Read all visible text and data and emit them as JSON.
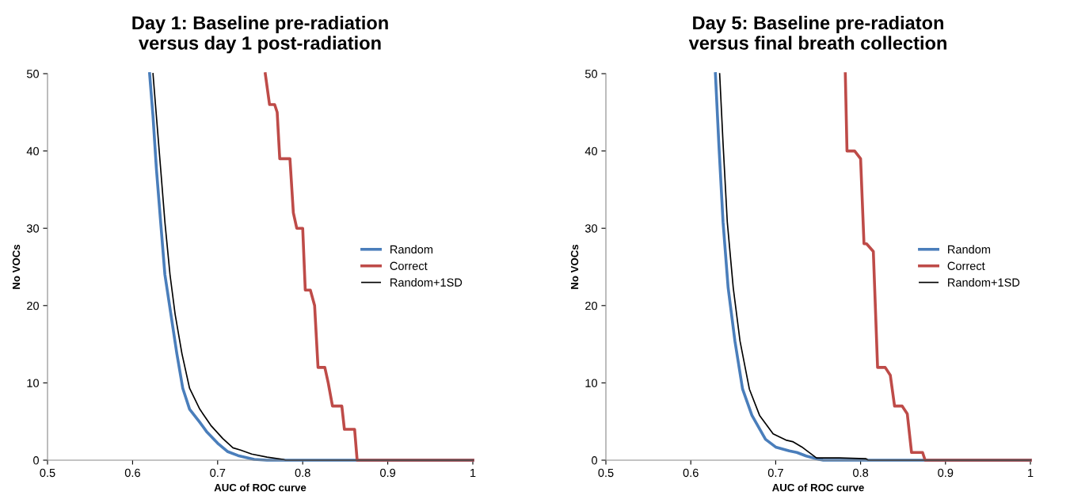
{
  "chart_data": [
    {
      "type": "line",
      "title": "Day 1: Baseline pre-radiation\nversus day 1 post-radiation",
      "xlabel": "AUC of ROC curve",
      "ylabel": "No VOCs",
      "xlim": [
        0.5,
        1
      ],
      "ylim": [
        0,
        50
      ],
      "xticks": [
        0.5,
        0.6,
        0.7,
        0.8,
        0.9,
        1
      ],
      "yticks": [
        0,
        10,
        20,
        30,
        40,
        50
      ],
      "grid": false,
      "legend": "right",
      "marker": "none",
      "series": [
        {
          "name": "Random",
          "color": "#4a7ebb",
          "x": [
            0.62,
            0.624,
            0.628,
            0.633,
            0.638,
            0.645,
            0.652,
            0.659,
            0.667,
            0.679,
            0.687,
            0.7,
            0.712,
            0.724,
            0.743,
            0.758,
            1.0
          ],
          "values": [
            50,
            44.5,
            37.7,
            30.8,
            24,
            18.9,
            13.8,
            9.3,
            6.6,
            4.9,
            3.7,
            2.2,
            1.1,
            0.6,
            0.1,
            0,
            0
          ]
        },
        {
          "name": "Correct",
          "color": "#be4b48",
          "x": [
            0.756,
            0.761,
            0.767,
            0.77,
            0.773,
            0.785,
            0.789,
            0.793,
            0.8,
            0.803,
            0.809,
            0.814,
            0.818,
            0.826,
            0.83,
            0.835,
            0.846,
            0.849,
            0.861,
            0.864,
            1.0
          ],
          "values": [
            50,
            46,
            46,
            45,
            39,
            39,
            32,
            30,
            30,
            22,
            22,
            20,
            12,
            12,
            10,
            7,
            7,
            4,
            4,
            0,
            0
          ]
        },
        {
          "name": "Random+1SD",
          "color": "#000000",
          "x": [
            0.624,
            0.628,
            0.633,
            0.638,
            0.644,
            0.65,
            0.658,
            0.667,
            0.679,
            0.692,
            0.706,
            0.718,
            0.727,
            0.74,
            0.758,
            0.777,
            0.78,
            1.0
          ],
          "values": [
            50,
            44.5,
            37.7,
            30.8,
            24,
            18.9,
            13.8,
            9.3,
            6.6,
            4.5,
            2.8,
            1.6,
            1.3,
            0.8,
            0.4,
            0.1,
            0,
            0
          ]
        }
      ]
    },
    {
      "type": "line",
      "title": "Day 5: Baseline pre-radiaton\nversus final breath collection",
      "xlabel": "AUC of ROC curve",
      "ylabel": "No VOCs",
      "xlim": [
        0.5,
        1
      ],
      "ylim": [
        0,
        50
      ],
      "xticks": [
        0.5,
        0.6,
        0.7,
        0.8,
        0.9,
        1
      ],
      "yticks": [
        0,
        10,
        20,
        30,
        40,
        50
      ],
      "grid": false,
      "legend": "right",
      "marker": "none",
      "series": [
        {
          "name": "Random",
          "color": "#4a7ebb",
          "x": [
            0.629,
            0.633,
            0.638,
            0.644,
            0.652,
            0.661,
            0.672,
            0.688,
            0.7,
            0.716,
            0.725,
            0.737,
            0.751,
            0.756,
            1.0
          ],
          "values": [
            50,
            41,
            30.8,
            22.3,
            15.4,
            9.2,
            5.8,
            2.7,
            1.7,
            1.2,
            1.0,
            0.5,
            0.1,
            0,
            0
          ]
        },
        {
          "name": "Correct",
          "color": "#be4b48",
          "x": [
            0.782,
            0.784,
            0.793,
            0.8,
            0.804,
            0.807,
            0.815,
            0.82,
            0.829,
            0.835,
            0.84,
            0.849,
            0.855,
            0.86,
            0.873,
            0.876,
            1.0
          ],
          "values": [
            50,
            40,
            40,
            39,
            28,
            28,
            27,
            12,
            12,
            11,
            7,
            7,
            6,
            1,
            1,
            0,
            0
          ]
        },
        {
          "name": "Random+1SD",
          "color": "#000000",
          "x": [
            0.634,
            0.638,
            0.643,
            0.65,
            0.658,
            0.669,
            0.681,
            0.697,
            0.712,
            0.72,
            0.731,
            0.748,
            0.775,
            0.806,
            0.809,
            1.0
          ],
          "values": [
            50,
            41,
            30.8,
            22.3,
            15.4,
            9.2,
            5.8,
            3.4,
            2.6,
            2.4,
            1.7,
            0.3,
            0.3,
            0.2,
            0,
            0
          ]
        }
      ]
    }
  ]
}
